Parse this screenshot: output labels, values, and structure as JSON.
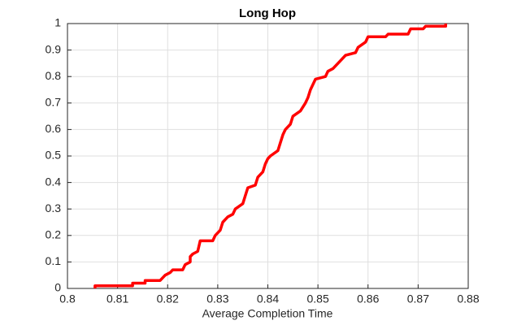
{
  "chart_data": {
    "type": "line",
    "title": "Long Hop",
    "x_label": "Average Completion Time",
    "x": [
      0.8055,
      0.8055,
      0.813,
      0.813,
      0.8155,
      0.8155,
      0.8185,
      0.819,
      0.8195,
      0.8205,
      0.821,
      0.823,
      0.8235,
      0.8245,
      0.8245,
      0.825,
      0.826,
      0.8265,
      0.829,
      0.8295,
      0.8305,
      0.831,
      0.832,
      0.833,
      0.8335,
      0.835,
      0.8355,
      0.836,
      0.8375,
      0.838,
      0.839,
      0.8395,
      0.84,
      0.8405,
      0.842,
      0.8425,
      0.843,
      0.8435,
      0.8445,
      0.845,
      0.8465,
      0.8475,
      0.848,
      0.8485,
      0.849,
      0.8495,
      0.8515,
      0.852,
      0.853,
      0.8545,
      0.8555,
      0.8575,
      0.858,
      0.8595,
      0.86,
      0.8635,
      0.864,
      0.868,
      0.8685,
      0.871,
      0.8715,
      0.8755,
      0.8755
    ],
    "series": [
      {
        "color": "#ff0000",
        "values": [
          0,
          0.01,
          0.01,
          0.02,
          0.02,
          0.03,
          0.03,
          0.04,
          0.05,
          0.06,
          0.07,
          0.07,
          0.09,
          0.1,
          0.12,
          0.13,
          0.14,
          0.18,
          0.18,
          0.2,
          0.22,
          0.25,
          0.27,
          0.28,
          0.3,
          0.32,
          0.35,
          0.38,
          0.39,
          0.42,
          0.44,
          0.47,
          0.49,
          0.5,
          0.52,
          0.55,
          0.58,
          0.6,
          0.62,
          0.65,
          0.67,
          0.7,
          0.72,
          0.75,
          0.77,
          0.79,
          0.8,
          0.82,
          0.83,
          0.86,
          0.88,
          0.89,
          0.91,
          0.93,
          0.95,
          0.95,
          0.96,
          0.96,
          0.98,
          0.98,
          0.99,
          0.99,
          1
        ]
      }
    ],
    "xlim": [
      0.8,
      0.88
    ],
    "xticks": [
      0.8,
      0.81,
      0.82,
      0.83,
      0.84,
      0.85,
      0.86,
      0.87,
      0.88
    ],
    "ylim": [
      0,
      1
    ],
    "yticks": [
      0,
      0.1,
      0.2,
      0.3,
      0.4,
      0.5,
      0.6,
      0.7,
      0.8,
      0.9,
      1
    ],
    "grid": true
  }
}
